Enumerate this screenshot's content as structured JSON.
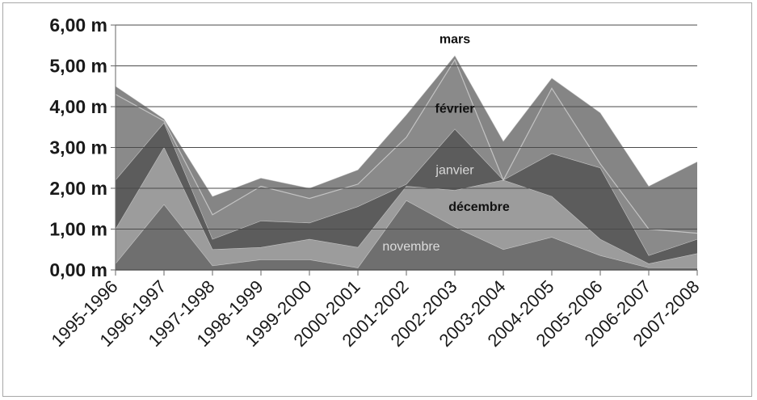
{
  "chart_data": {
    "type": "area",
    "stacked": true,
    "categories": [
      "1995-1996",
      "1996-1997",
      "1997-1998",
      "1998-1999",
      "1999-2000",
      "2000-2001",
      "2001-2002",
      "2002-2003",
      "2003-2004",
      "2004-2005",
      "2005-2006",
      "2006-2007",
      "2007-2008"
    ],
    "ylim": [
      0,
      6
    ],
    "yticks": [
      0,
      1,
      2,
      3,
      4,
      5,
      6
    ],
    "ytick_labels": [
      "0,00 m",
      "1,00 m",
      "2,00 m",
      "3,00 m",
      "4,00 m",
      "5,00 m",
      "6,00 m"
    ],
    "grid": true,
    "series": [
      {
        "name": "novembre",
        "values": [
          0.15,
          1.6,
          0.1,
          0.25,
          0.25,
          0.05,
          1.7,
          1.05,
          0.5,
          0.8,
          0.35,
          0.05,
          0.05
        ],
        "color": "#6f6f6f",
        "label_color": "#dcdcdc"
      },
      {
        "name": "décembre",
        "values": [
          0.85,
          1.4,
          0.4,
          0.3,
          0.5,
          0.5,
          0.35,
          0.9,
          1.7,
          1.0,
          0.4,
          0.1,
          0.35
        ],
        "color": "#9c9c9c",
        "label_color": "#111111"
      },
      {
        "name": "janvier",
        "values": [
          1.2,
          0.6,
          0.25,
          0.65,
          0.4,
          1.0,
          0.05,
          1.5,
          0.0,
          1.05,
          1.75,
          0.2,
          0.35
        ],
        "color": "#5c5c5c",
        "label_color": "#d9d9d9"
      },
      {
        "name": "février",
        "values": [
          2.1,
          0.05,
          0.6,
          0.85,
          0.6,
          0.55,
          1.15,
          1.7,
          0.0,
          1.6,
          0.1,
          0.65,
          0.15
        ],
        "color": "#8a8a8a",
        "label_color": "#111111"
      },
      {
        "name": "mars",
        "values": [
          0.2,
          0.05,
          0.45,
          0.2,
          0.25,
          0.35,
          0.55,
          0.1,
          0.95,
          0.25,
          1.25,
          1.05,
          1.75
        ],
        "color": "#858585",
        "label_color": "#111111"
      }
    ],
    "series_labels": [
      {
        "text": "novembre",
        "series": "novembre",
        "at_category": 6.1,
        "at_value": 0.48
      },
      {
        "text": "décembre",
        "series": "décembre",
        "at_category": 7.5,
        "at_value": 1.45
      },
      {
        "text": "janvier",
        "series": "janvier",
        "at_category": 7.0,
        "at_value": 2.35
      },
      {
        "text": "février",
        "series": "février",
        "at_category": 7.0,
        "at_value": 3.85
      },
      {
        "text": "mars",
        "series": "mars",
        "at_category": 7.0,
        "at_value": 5.55
      }
    ]
  }
}
